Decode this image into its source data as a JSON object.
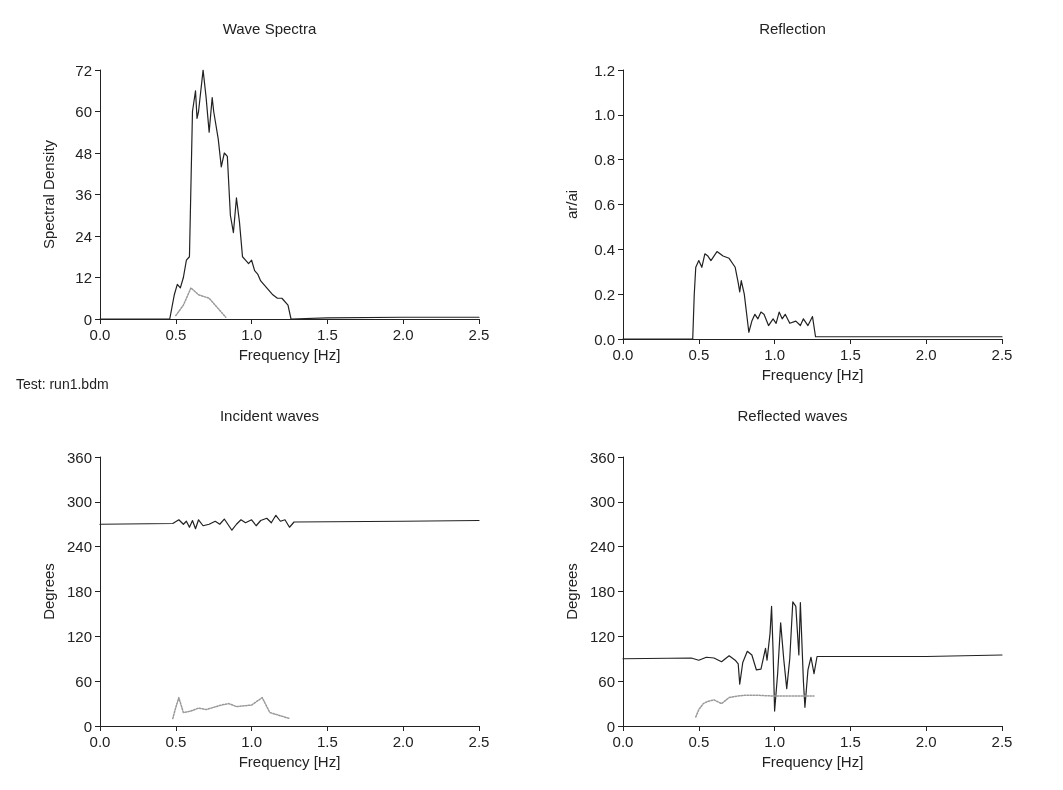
{
  "chart_data": [
    {
      "type": "line",
      "title": "Wave Spectra",
      "xlabel": "Frequency [Hz]",
      "ylabel": "Spectral Density",
      "marker": "none",
      "grid": false,
      "xlim": [
        0,
        2.5
      ],
      "xticks": [
        {
          "value": 0,
          "label": "0.0"
        },
        {
          "value": 0.5,
          "label": "0.5"
        },
        {
          "value": 1,
          "label": "1.0"
        },
        {
          "value": 1.5,
          "label": "1.5"
        },
        {
          "value": 2,
          "label": "2.0"
        },
        {
          "value": 2.5,
          "label": "2.5"
        }
      ],
      "ylim": [
        0,
        72
      ],
      "yticks": [
        0,
        12,
        24,
        36,
        48,
        60,
        72
      ],
      "annotations": [
        "Test: run1.bdm"
      ],
      "series": [
        {
          "color": "#222222",
          "line_style": "solid",
          "x": [
            0,
            0.46,
            0.49,
            0.51,
            0.53,
            0.55,
            0.57,
            0.59,
            0.61,
            0.63,
            0.64,
            0.65,
            0.67,
            0.68,
            0.7,
            0.72,
            0.74,
            0.75,
            0.78,
            0.8,
            0.82,
            0.84,
            0.86,
            0.88,
            0.9,
            0.92,
            0.94,
            0.96,
            0.98,
            1.0,
            1.02,
            1.04,
            1.06,
            1.1,
            1.14,
            1.17,
            1.2,
            1.24,
            1.26,
            1.5,
            2.0,
            2.5
          ],
          "values": [
            0,
            0,
            7,
            10,
            9,
            12,
            17,
            18,
            60,
            66,
            58,
            60,
            68,
            72,
            64,
            54,
            64,
            60,
            52,
            44,
            48,
            47,
            30,
            25,
            35,
            28,
            18,
            17,
            16,
            17,
            14,
            13,
            11,
            9,
            7,
            6,
            6,
            4,
            0,
            0.3,
            0.5,
            0.5
          ]
        },
        {
          "color": "#999999",
          "line_style": "dotted",
          "x": [
            0.5,
            0.55,
            0.6,
            0.65,
            0.72,
            0.78,
            0.83
          ],
          "values": [
            1,
            4,
            9,
            7,
            6,
            3,
            0.5
          ]
        }
      ]
    },
    {
      "type": "line",
      "title": "Reflection",
      "xlabel": "Frequency [Hz]",
      "ylabel": "ar/ai",
      "marker": "none",
      "grid": false,
      "xlim": [
        0,
        2.5
      ],
      "xticks": [
        {
          "value": 0,
          "label": "0.0"
        },
        {
          "value": 0.5,
          "label": "0.5"
        },
        {
          "value": 1,
          "label": "1.0"
        },
        {
          "value": 1.5,
          "label": "1.5"
        },
        {
          "value": 2,
          "label": "2.0"
        },
        {
          "value": 2.5,
          "label": "2.5"
        }
      ],
      "ylim": [
        0,
        1.2
      ],
      "yticks": [
        {
          "value": 0,
          "label": "0.0"
        },
        {
          "value": 0.2,
          "label": "0.2"
        },
        {
          "value": 0.4,
          "label": "0.4"
        },
        {
          "value": 0.6,
          "label": "0.6"
        },
        {
          "value": 0.8,
          "label": "0.8"
        },
        {
          "value": 1,
          "label": "1.0"
        },
        {
          "value": 1.2,
          "label": "1.2"
        }
      ],
      "series": [
        {
          "color": "#222222",
          "line_style": "solid",
          "x": [
            0,
            0.46,
            0.47,
            0.48,
            0.5,
            0.52,
            0.54,
            0.56,
            0.58,
            0.6,
            0.62,
            0.66,
            0.7,
            0.74,
            0.76,
            0.77,
            0.78,
            0.8,
            0.83,
            0.85,
            0.87,
            0.89,
            0.91,
            0.93,
            0.96,
            0.99,
            1.01,
            1.03,
            1.05,
            1.07,
            1.1,
            1.14,
            1.17,
            1.19,
            1.22,
            1.25,
            1.27,
            2.0,
            2.5
          ],
          "values": [
            0,
            0,
            0.2,
            0.32,
            0.35,
            0.32,
            0.38,
            0.37,
            0.35,
            0.37,
            0.39,
            0.37,
            0.36,
            0.32,
            0.25,
            0.21,
            0.26,
            0.2,
            0.03,
            0.08,
            0.11,
            0.09,
            0.12,
            0.11,
            0.06,
            0.09,
            0.07,
            0.12,
            0.09,
            0.11,
            0.07,
            0.08,
            0.06,
            0.09,
            0.06,
            0.1,
            0.01,
            0.01,
            0.01
          ]
        }
      ]
    },
    {
      "type": "line",
      "title": "Incident waves",
      "xlabel": "Frequency [Hz]",
      "ylabel": "Degrees",
      "marker": "none",
      "grid": false,
      "xlim": [
        0,
        2.5
      ],
      "xticks": [
        {
          "value": 0,
          "label": "0.0"
        },
        {
          "value": 0.5,
          "label": "0.5"
        },
        {
          "value": 1,
          "label": "1.0"
        },
        {
          "value": 1.5,
          "label": "1.5"
        },
        {
          "value": 2,
          "label": "2.0"
        },
        {
          "value": 2.5,
          "label": "2.5"
        }
      ],
      "ylim": [
        0,
        360
      ],
      "yticks": [
        0,
        60,
        120,
        180,
        240,
        300,
        360
      ],
      "series": [
        {
          "color": "#222222",
          "line_style": "solid",
          "x": [
            0,
            0.48,
            0.52,
            0.55,
            0.57,
            0.59,
            0.61,
            0.63,
            0.65,
            0.68,
            0.72,
            0.76,
            0.79,
            0.82,
            0.85,
            0.87,
            0.9,
            0.93,
            0.96,
            1.0,
            1.03,
            1.06,
            1.1,
            1.13,
            1.16,
            1.19,
            1.22,
            1.25,
            1.28,
            2.0,
            2.5
          ],
          "values": [
            270,
            271,
            276,
            270,
            274,
            266,
            275,
            264,
            276,
            268,
            270,
            274,
            270,
            277,
            268,
            262,
            270,
            276,
            272,
            276,
            268,
            275,
            278,
            272,
            282,
            274,
            276,
            266,
            273,
            274,
            275
          ]
        },
        {
          "color": "#999999",
          "line_style": "dotted",
          "x": [
            0.48,
            0.5,
            0.52,
            0.55,
            0.6,
            0.65,
            0.7,
            0.8,
            0.85,
            0.9,
            1.0,
            1.07,
            1.12,
            1.25
          ],
          "values": [
            10,
            25,
            38,
            18,
            20,
            24,
            22,
            28,
            30,
            26,
            28,
            38,
            18,
            10
          ]
        }
      ]
    },
    {
      "type": "line",
      "title": "Reflected waves",
      "xlabel": "Frequency [Hz]",
      "ylabel": "Degrees",
      "marker": "none",
      "grid": false,
      "xlim": [
        0,
        2.5
      ],
      "xticks": [
        {
          "value": 0,
          "label": "0.0"
        },
        {
          "value": 0.5,
          "label": "0.5"
        },
        {
          "value": 1,
          "label": "1.0"
        },
        {
          "value": 1.5,
          "label": "1.5"
        },
        {
          "value": 2,
          "label": "2.0"
        },
        {
          "value": 2.5,
          "label": "2.5"
        }
      ],
      "ylim": [
        0,
        360
      ],
      "yticks": [
        0,
        60,
        120,
        180,
        240,
        300,
        360
      ],
      "series": [
        {
          "color": "#222222",
          "line_style": "solid",
          "x": [
            0,
            0.45,
            0.5,
            0.55,
            0.6,
            0.65,
            0.7,
            0.74,
            0.76,
            0.77,
            0.79,
            0.82,
            0.85,
            0.88,
            0.91,
            0.94,
            0.95,
            0.97,
            0.98,
            0.99,
            1.0,
            1.02,
            1.04,
            1.06,
            1.08,
            1.1,
            1.12,
            1.14,
            1.16,
            1.17,
            1.19,
            1.2,
            1.22,
            1.24,
            1.26,
            1.28,
            2.0,
            2.5
          ],
          "values": [
            90,
            91,
            88,
            92,
            91,
            86,
            94,
            88,
            83,
            56,
            85,
            100,
            95,
            75,
            76,
            104,
            88,
            124,
            160,
            100,
            20,
            70,
            138,
            90,
            50,
            90,
            166,
            160,
            95,
            165,
            60,
            25,
            75,
            92,
            70,
            93,
            93,
            95
          ]
        },
        {
          "color": "#999999",
          "line_style": "dotted",
          "x": [
            0.48,
            0.5,
            0.53,
            0.56,
            0.6,
            0.65,
            0.7,
            0.75,
            0.8,
            0.9,
            1.0,
            1.1,
            1.2,
            1.26
          ],
          "values": [
            12,
            22,
            30,
            33,
            35,
            30,
            38,
            40,
            41,
            41,
            40,
            40,
            40,
            40
          ]
        }
      ]
    }
  ]
}
